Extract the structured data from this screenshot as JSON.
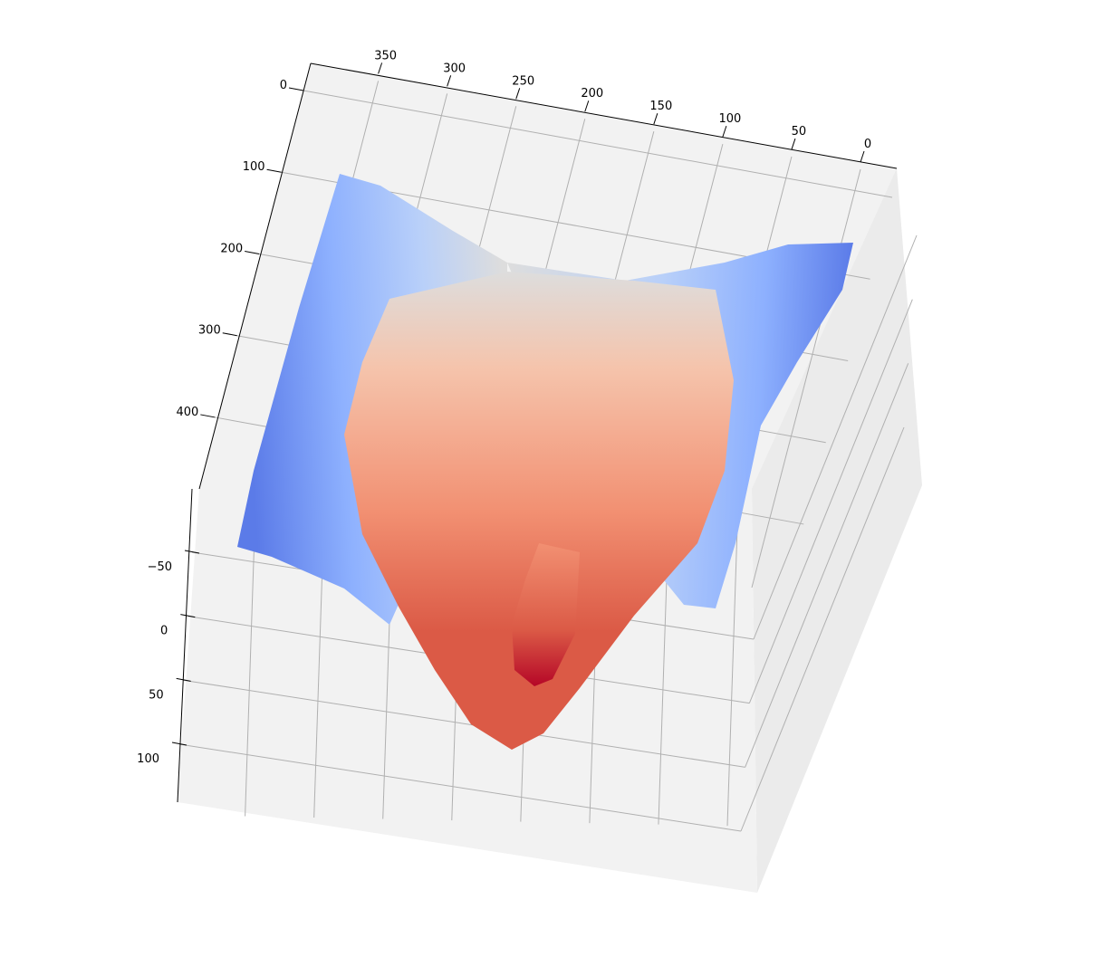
{
  "chart_data": {
    "type": "surface",
    "title": "",
    "colormap": "coolwarm",
    "colormap_colors": [
      "#3b4cc0",
      "#5b7be8",
      "#8db0fe",
      "#b9d0f9",
      "#dddddd",
      "#f5c4ac",
      "#f29072",
      "#db5a46",
      "#b40426"
    ],
    "pane_color": "#f2f2f2",
    "grid_color": "#b0b0b0",
    "grid": true,
    "legend": "none",
    "x_axis": {
      "label": "",
      "ticks": [
        0,
        50,
        100,
        150,
        200,
        250,
        300,
        350
      ],
      "tick_labels": [
        "0",
        "50",
        "100",
        "150",
        "200",
        "250",
        "300",
        "350"
      ]
    },
    "y_axis": {
      "label": "",
      "ticks": [
        0,
        100,
        200,
        300,
        400
      ],
      "tick_labels": [
        "0",
        "100",
        "200",
        "300",
        "400"
      ]
    },
    "z_axis": {
      "label": "",
      "ticks": [
        -50,
        0,
        50,
        100
      ],
      "tick_labels": [
        "−50",
        "0",
        "50",
        "100"
      ]
    },
    "surface_description_values": {
      "x_range": [
        0,
        380
      ],
      "y_range": [
        100,
        450
      ],
      "z_range": [
        -75,
        110
      ],
      "z_min_location": [
        250,
        440
      ],
      "z_max_location": [
        180,
        420
      ]
    }
  }
}
